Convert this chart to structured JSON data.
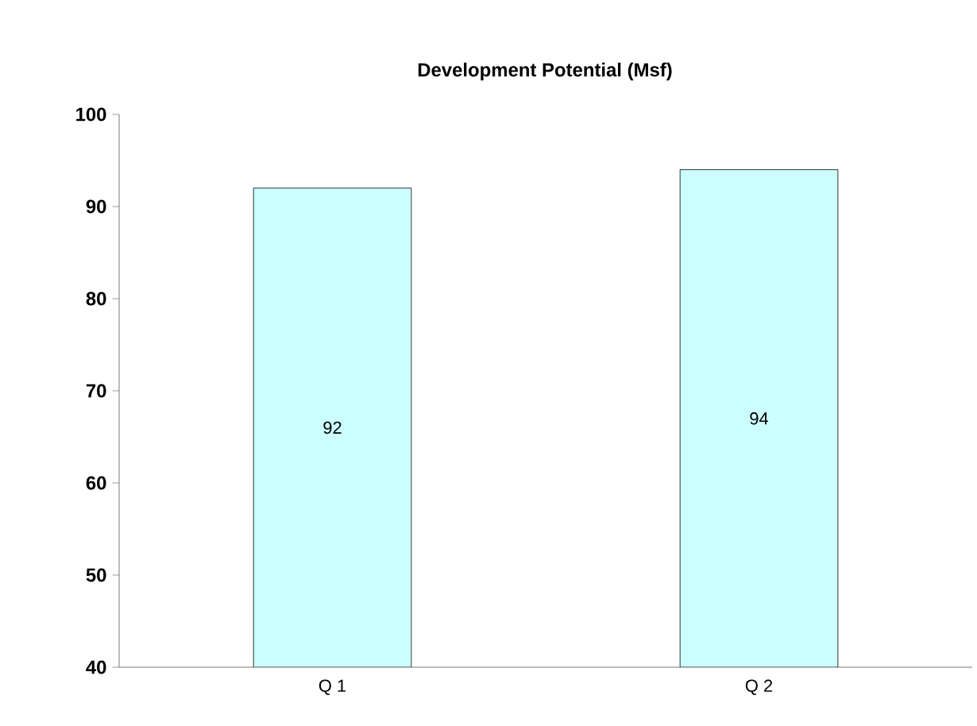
{
  "chart_data": {
    "type": "bar",
    "title": "Development Potential  (Msf)",
    "categories": [
      "Q 1",
      "Q 2"
    ],
    "values": [
      92,
      94
    ],
    "color": "#ccffff",
    "ylim": [
      40,
      100
    ],
    "yticks": [
      40,
      50,
      60,
      70,
      80,
      90,
      100
    ],
    "data_labels": true,
    "grid": false
  }
}
